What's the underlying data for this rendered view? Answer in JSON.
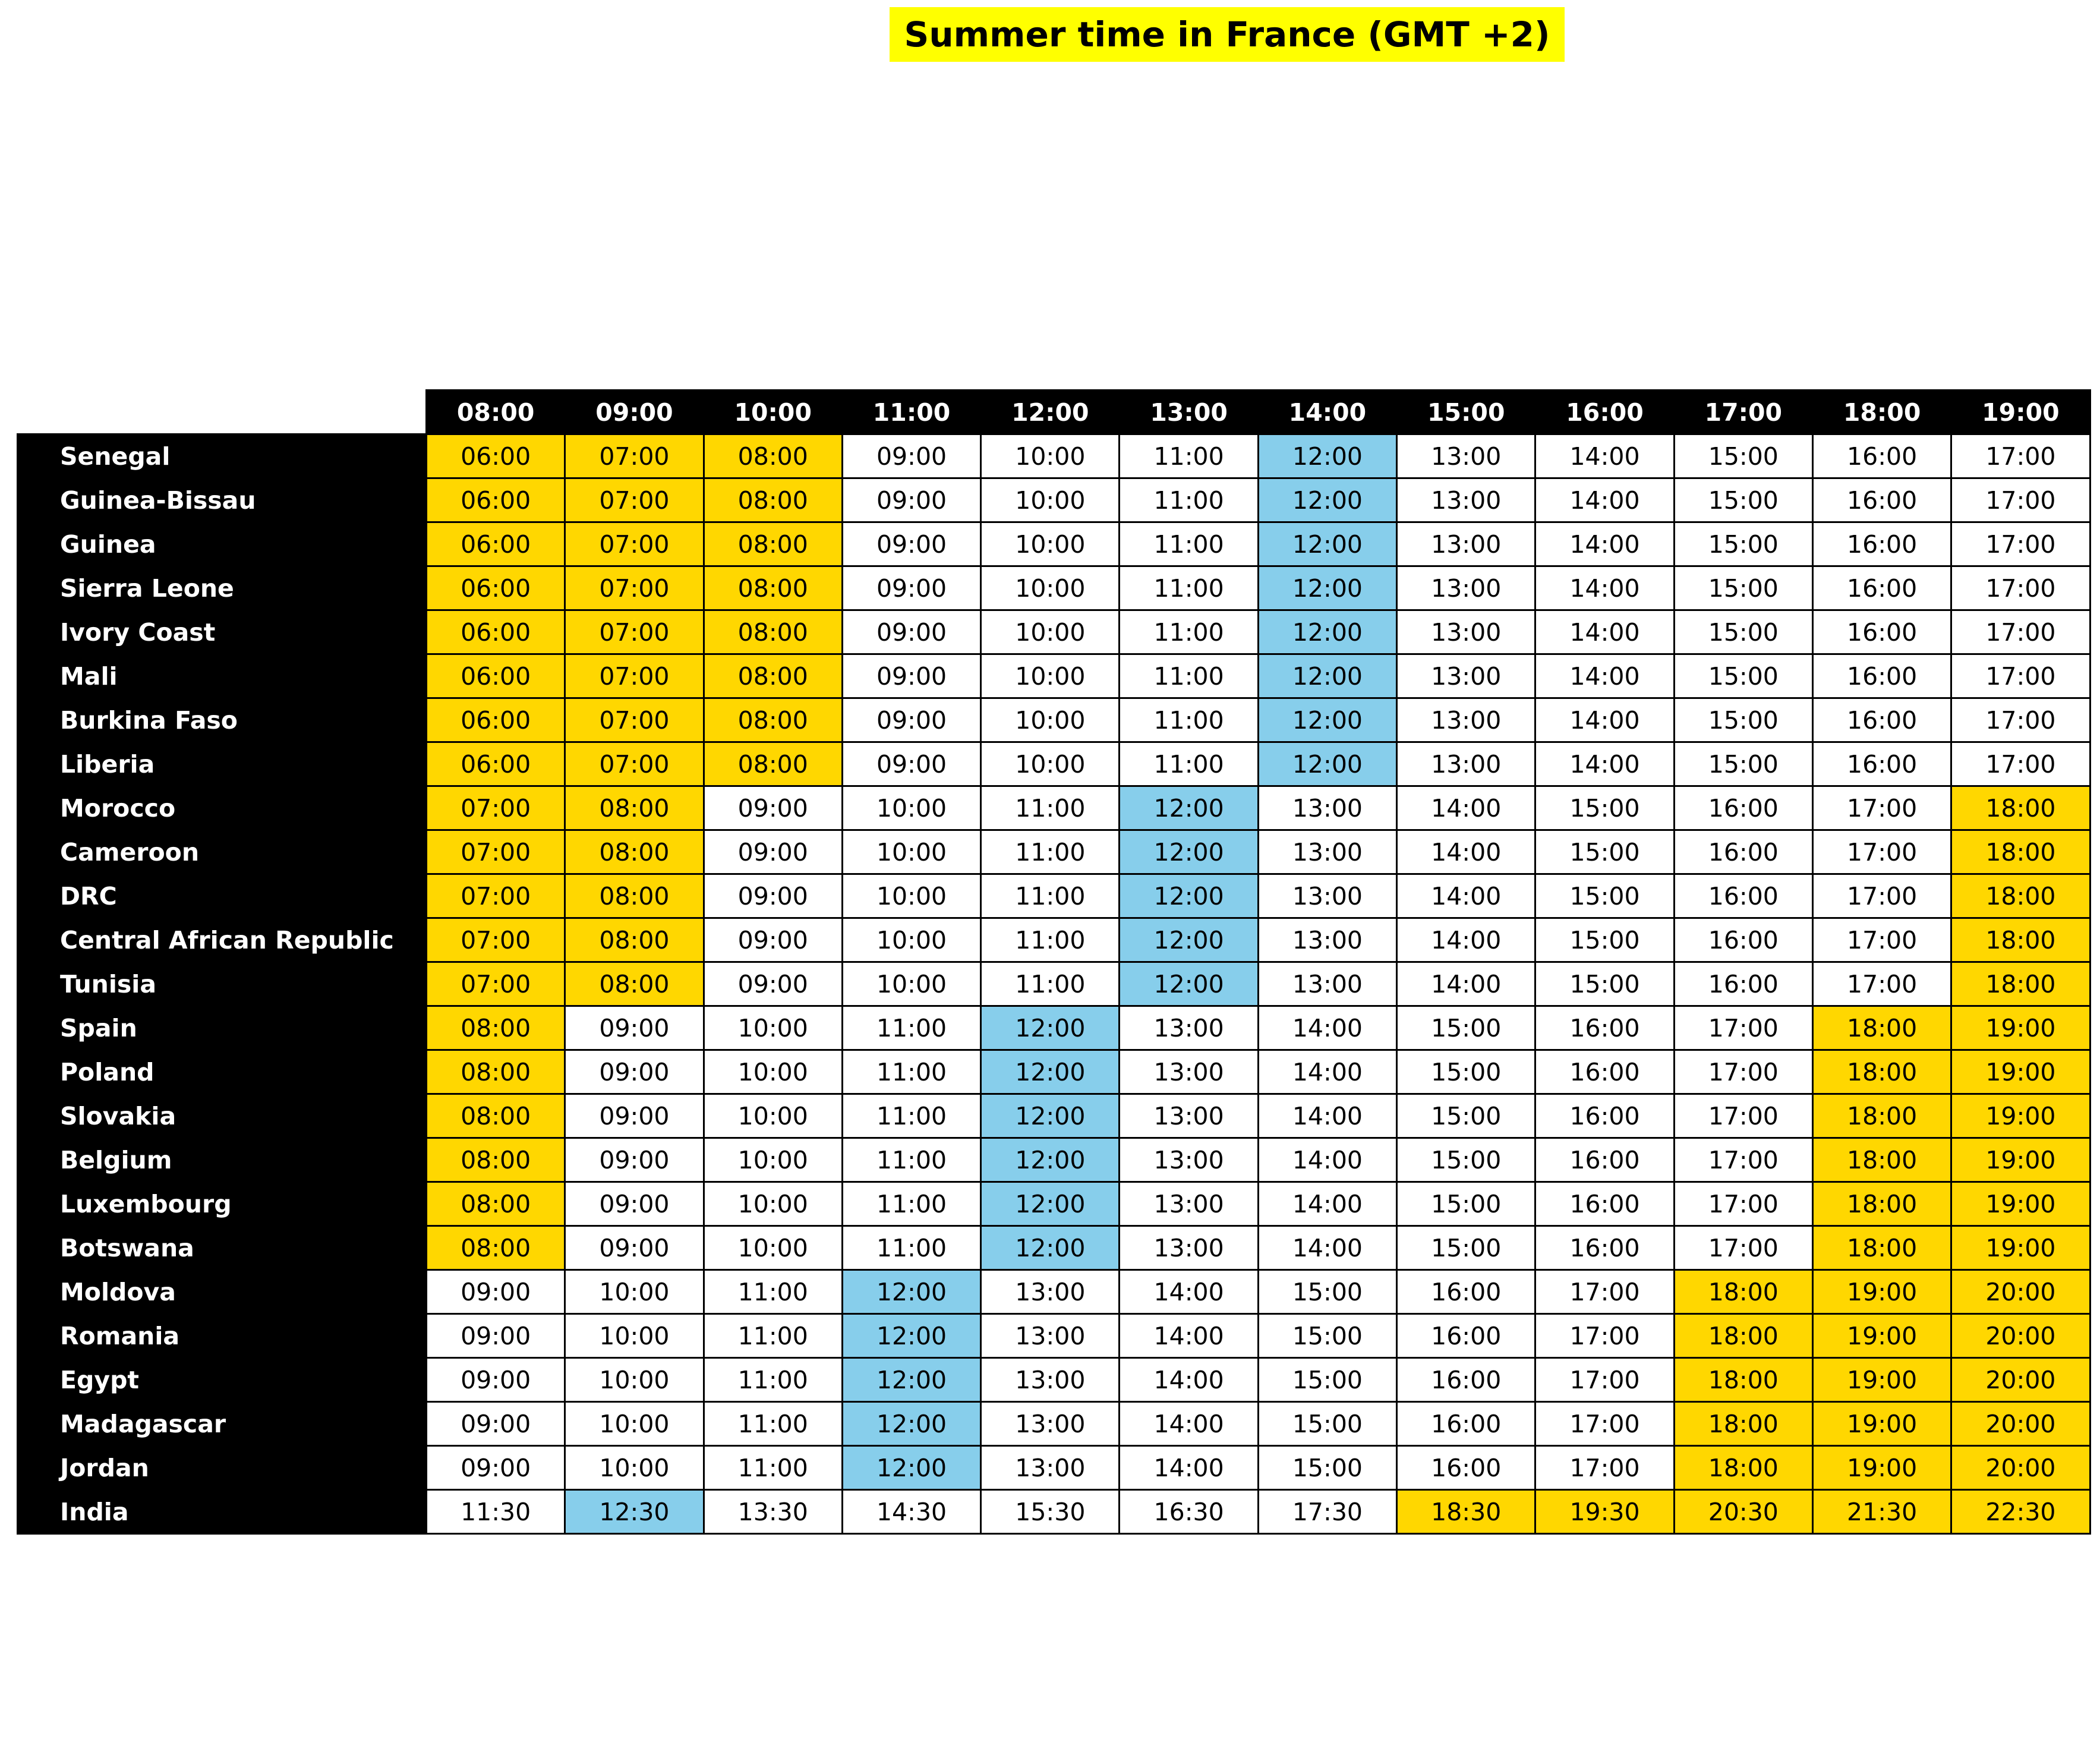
{
  "title": "Summer time in France (GMT +2)",
  "colors": {
    "work_hours": "#ffd700",
    "noon": "#87ceeb",
    "normal": "#ffffff",
    "header": "#000000",
    "title_bg": "#ffff00"
  },
  "chart_data": {
    "type": "table",
    "title": "Summer time in France (GMT +2)",
    "columns": [
      "08:00",
      "09:00",
      "10:00",
      "11:00",
      "12:00",
      "13:00",
      "14:00",
      "15:00",
      "16:00",
      "17:00",
      "18:00",
      "19:00"
    ],
    "rows": [
      {
        "name": "Senegal",
        "values": [
          "06:00",
          "07:00",
          "08:00",
          "09:00",
          "10:00",
          "11:00",
          "12:00",
          "13:00",
          "14:00",
          "15:00",
          "16:00",
          "17:00"
        ]
      },
      {
        "name": "Guinea-Bissau",
        "values": [
          "06:00",
          "07:00",
          "08:00",
          "09:00",
          "10:00",
          "11:00",
          "12:00",
          "13:00",
          "14:00",
          "15:00",
          "16:00",
          "17:00"
        ]
      },
      {
        "name": "Guinea",
        "values": [
          "06:00",
          "07:00",
          "08:00",
          "09:00",
          "10:00",
          "11:00",
          "12:00",
          "13:00",
          "14:00",
          "15:00",
          "16:00",
          "17:00"
        ]
      },
      {
        "name": "Sierra Leone",
        "values": [
          "06:00",
          "07:00",
          "08:00",
          "09:00",
          "10:00",
          "11:00",
          "12:00",
          "13:00",
          "14:00",
          "15:00",
          "16:00",
          "17:00"
        ]
      },
      {
        "name": "Ivory Coast",
        "values": [
          "06:00",
          "07:00",
          "08:00",
          "09:00",
          "10:00",
          "11:00",
          "12:00",
          "13:00",
          "14:00",
          "15:00",
          "16:00",
          "17:00"
        ]
      },
      {
        "name": "Mali",
        "values": [
          "06:00",
          "07:00",
          "08:00",
          "09:00",
          "10:00",
          "11:00",
          "12:00",
          "13:00",
          "14:00",
          "15:00",
          "16:00",
          "17:00"
        ]
      },
      {
        "name": "Burkina Faso",
        "values": [
          "06:00",
          "07:00",
          "08:00",
          "09:00",
          "10:00",
          "11:00",
          "12:00",
          "13:00",
          "14:00",
          "15:00",
          "16:00",
          "17:00"
        ]
      },
      {
        "name": "Liberia",
        "values": [
          "06:00",
          "07:00",
          "08:00",
          "09:00",
          "10:00",
          "11:00",
          "12:00",
          "13:00",
          "14:00",
          "15:00",
          "16:00",
          "17:00"
        ]
      },
      {
        "name": "Morocco",
        "values": [
          "07:00",
          "08:00",
          "09:00",
          "10:00",
          "11:00",
          "12:00",
          "13:00",
          "14:00",
          "15:00",
          "16:00",
          "17:00",
          "18:00"
        ]
      },
      {
        "name": "Cameroon",
        "values": [
          "07:00",
          "08:00",
          "09:00",
          "10:00",
          "11:00",
          "12:00",
          "13:00",
          "14:00",
          "15:00",
          "16:00",
          "17:00",
          "18:00"
        ]
      },
      {
        "name": "DRC",
        "values": [
          "07:00",
          "08:00",
          "09:00",
          "10:00",
          "11:00",
          "12:00",
          "13:00",
          "14:00",
          "15:00",
          "16:00",
          "17:00",
          "18:00"
        ]
      },
      {
        "name": "Central African Republic",
        "values": [
          "07:00",
          "08:00",
          "09:00",
          "10:00",
          "11:00",
          "12:00",
          "13:00",
          "14:00",
          "15:00",
          "16:00",
          "17:00",
          "18:00"
        ]
      },
      {
        "name": "Tunisia",
        "values": [
          "07:00",
          "08:00",
          "09:00",
          "10:00",
          "11:00",
          "12:00",
          "13:00",
          "14:00",
          "15:00",
          "16:00",
          "17:00",
          "18:00"
        ]
      },
      {
        "name": "Spain",
        "values": [
          "08:00",
          "09:00",
          "10:00",
          "11:00",
          "12:00",
          "13:00",
          "14:00",
          "15:00",
          "16:00",
          "17:00",
          "18:00",
          "19:00"
        ]
      },
      {
        "name": "Poland",
        "values": [
          "08:00",
          "09:00",
          "10:00",
          "11:00",
          "12:00",
          "13:00",
          "14:00",
          "15:00",
          "16:00",
          "17:00",
          "18:00",
          "19:00"
        ]
      },
      {
        "name": "Slovakia",
        "values": [
          "08:00",
          "09:00",
          "10:00",
          "11:00",
          "12:00",
          "13:00",
          "14:00",
          "15:00",
          "16:00",
          "17:00",
          "18:00",
          "19:00"
        ]
      },
      {
        "name": "Belgium",
        "values": [
          "08:00",
          "09:00",
          "10:00",
          "11:00",
          "12:00",
          "13:00",
          "14:00",
          "15:00",
          "16:00",
          "17:00",
          "18:00",
          "19:00"
        ]
      },
      {
        "name": "Luxembourg",
        "values": [
          "08:00",
          "09:00",
          "10:00",
          "11:00",
          "12:00",
          "13:00",
          "14:00",
          "15:00",
          "16:00",
          "17:00",
          "18:00",
          "19:00"
        ]
      },
      {
        "name": "Botswana",
        "values": [
          "08:00",
          "09:00",
          "10:00",
          "11:00",
          "12:00",
          "13:00",
          "14:00",
          "15:00",
          "16:00",
          "17:00",
          "18:00",
          "19:00"
        ]
      },
      {
        "name": "Moldova",
        "values": [
          "09:00",
          "10:00",
          "11:00",
          "12:00",
          "13:00",
          "14:00",
          "15:00",
          "16:00",
          "17:00",
          "18:00",
          "19:00",
          "20:00"
        ]
      },
      {
        "name": "Romania",
        "values": [
          "09:00",
          "10:00",
          "11:00",
          "12:00",
          "13:00",
          "14:00",
          "15:00",
          "16:00",
          "17:00",
          "18:00",
          "19:00",
          "20:00"
        ]
      },
      {
        "name": "Egypt",
        "values": [
          "09:00",
          "10:00",
          "11:00",
          "12:00",
          "13:00",
          "14:00",
          "15:00",
          "16:00",
          "17:00",
          "18:00",
          "19:00",
          "20:00"
        ]
      },
      {
        "name": "Madagascar",
        "values": [
          "09:00",
          "10:00",
          "11:00",
          "12:00",
          "13:00",
          "14:00",
          "15:00",
          "16:00",
          "17:00",
          "18:00",
          "19:00",
          "20:00"
        ]
      },
      {
        "name": "Jordan",
        "values": [
          "09:00",
          "10:00",
          "11:00",
          "12:00",
          "13:00",
          "14:00",
          "15:00",
          "16:00",
          "17:00",
          "18:00",
          "19:00",
          "20:00"
        ]
      },
      {
        "name": "India",
        "values": [
          "11:30",
          "12:30",
          "13:30",
          "14:30",
          "15:30",
          "16:30",
          "17:30",
          "18:30",
          "19:30",
          "20:30",
          "21:30",
          "22:30"
        ]
      }
    ]
  }
}
